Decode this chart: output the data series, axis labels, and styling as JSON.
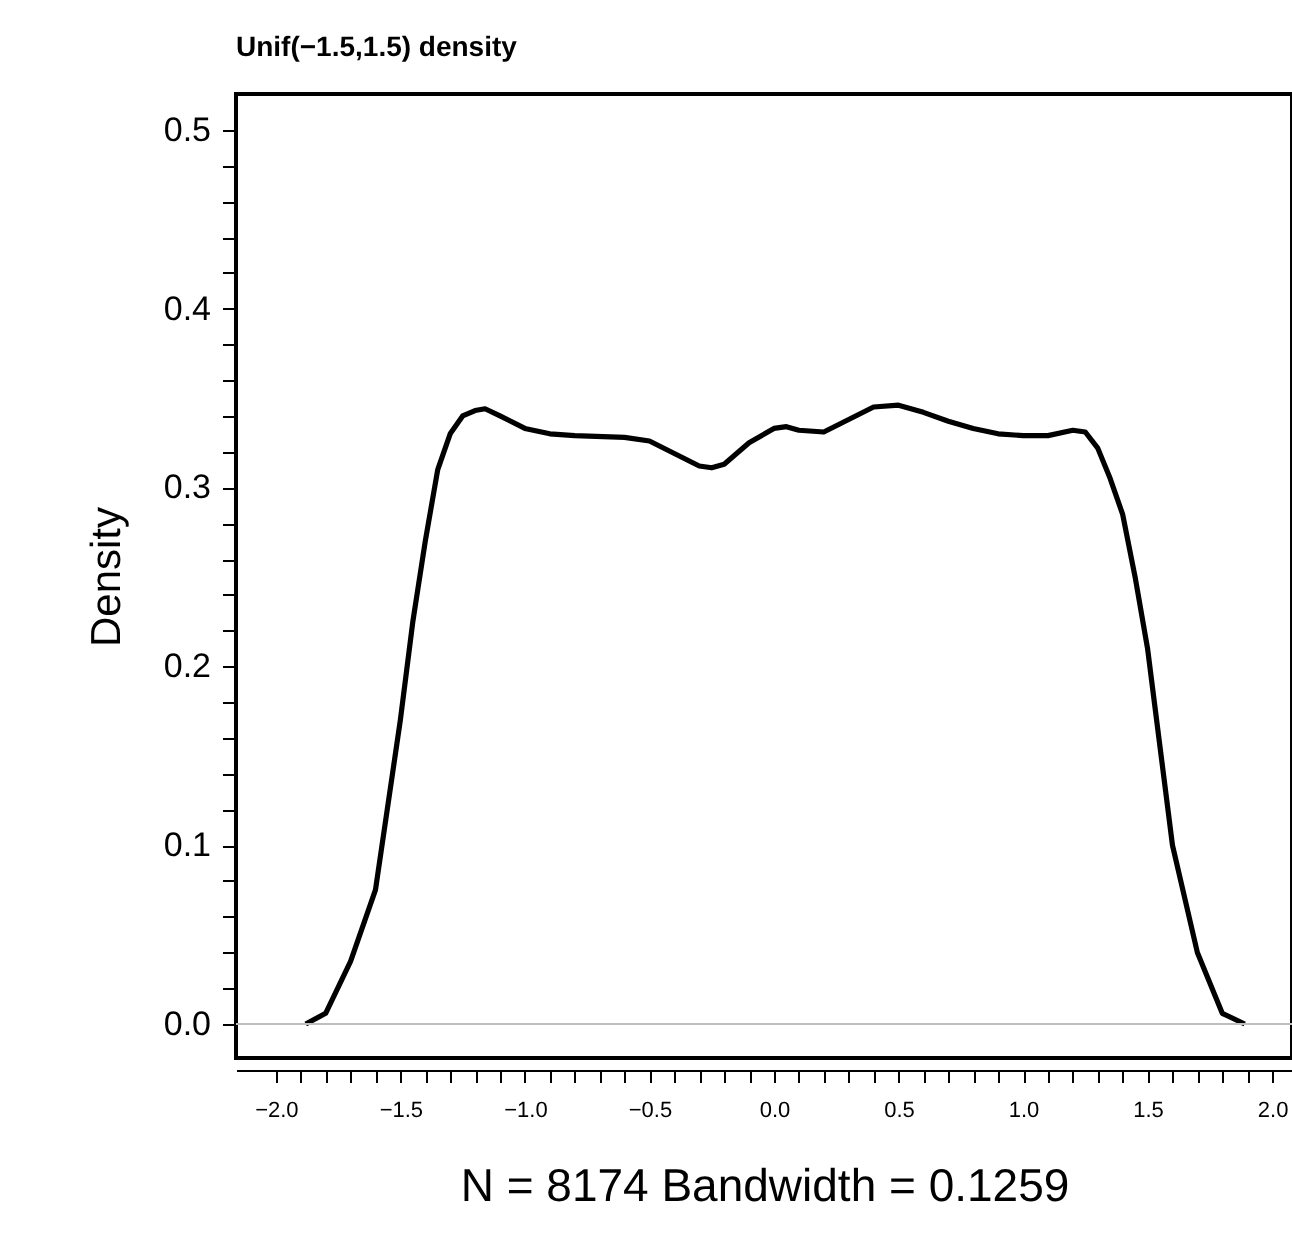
{
  "chart_data": {
    "type": "line",
    "title": "Unif(−1.5,1.5) density",
    "xlabel": "N = 8174 Bandwidth = 0.1259",
    "ylabel": "Density",
    "x": [
      -1.88,
      -1.8,
      -1.7,
      -1.6,
      -1.5,
      -1.45,
      -1.4,
      -1.35,
      -1.3,
      -1.25,
      -1.2,
      -1.16,
      -1.1,
      -1.0,
      -0.9,
      -0.8,
      -0.6,
      -0.5,
      -0.4,
      -0.3,
      -0.25,
      -0.2,
      -0.1,
      0.0,
      0.05,
      0.1,
      0.2,
      0.3,
      0.4,
      0.5,
      0.6,
      0.7,
      0.8,
      0.9,
      1.0,
      1.1,
      1.2,
      1.25,
      1.3,
      1.35,
      1.4,
      1.45,
      1.5,
      1.55,
      1.6,
      1.7,
      1.8,
      1.89
    ],
    "series": [
      {
        "color": "#000000",
        "values": [
          0.0,
          0.006,
          0.035,
          0.075,
          0.17,
          0.225,
          0.27,
          0.31,
          0.33,
          0.34,
          0.343,
          0.344,
          0.34,
          0.333,
          0.33,
          0.329,
          0.328,
          0.326,
          0.319,
          0.312,
          0.311,
          0.313,
          0.325,
          0.333,
          0.334,
          0.332,
          0.331,
          0.338,
          0.345,
          0.346,
          0.342,
          0.337,
          0.333,
          0.33,
          0.329,
          0.329,
          0.332,
          0.331,
          0.322,
          0.305,
          0.285,
          0.25,
          0.21,
          0.155,
          0.1,
          0.04,
          0.006,
          0.0
        ]
      }
    ],
    "xlim": [
      -2.16,
      2.08
    ],
    "ylim": [
      -0.019,
      0.52
    ],
    "xticks": [
      {
        "value": -2.0,
        "label": "−2.0"
      },
      {
        "value": -1.9,
        "label": null
      },
      {
        "value": -1.8,
        "label": null
      },
      {
        "value": -1.7,
        "label": null
      },
      {
        "value": -1.6,
        "label": null
      },
      {
        "value": -1.5,
        "label": "−1.5"
      },
      {
        "value": -1.4,
        "label": null
      },
      {
        "value": -1.3,
        "label": null
      },
      {
        "value": -1.2,
        "label": null
      },
      {
        "value": -1.1,
        "label": null
      },
      {
        "value": -1.0,
        "label": "−1.0"
      },
      {
        "value": -0.9,
        "label": null
      },
      {
        "value": -0.8,
        "label": null
      },
      {
        "value": -0.7,
        "label": null
      },
      {
        "value": -0.6,
        "label": null
      },
      {
        "value": -0.5,
        "label": "−0.5"
      },
      {
        "value": -0.4,
        "label": null
      },
      {
        "value": -0.3,
        "label": null
      },
      {
        "value": -0.2,
        "label": null
      },
      {
        "value": -0.1,
        "label": null
      },
      {
        "value": 0.0,
        "label": "0.0"
      },
      {
        "value": 0.1,
        "label": null
      },
      {
        "value": 0.2,
        "label": null
      },
      {
        "value": 0.3,
        "label": null
      },
      {
        "value": 0.4,
        "label": null
      },
      {
        "value": 0.5,
        "label": "0.5"
      },
      {
        "value": 0.6,
        "label": null
      },
      {
        "value": 0.7,
        "label": null
      },
      {
        "value": 0.8,
        "label": null
      },
      {
        "value": 0.9,
        "label": null
      },
      {
        "value": 1.0,
        "label": "1.0"
      },
      {
        "value": 1.1,
        "label": null
      },
      {
        "value": 1.2,
        "label": null
      },
      {
        "value": 1.3,
        "label": null
      },
      {
        "value": 1.4,
        "label": null
      },
      {
        "value": 1.5,
        "label": "1.5"
      },
      {
        "value": 1.6,
        "label": null
      },
      {
        "value": 1.7,
        "label": null
      },
      {
        "value": 1.8,
        "label": null
      },
      {
        "value": 1.9,
        "label": null
      },
      {
        "value": 2.0,
        "label": "2.0"
      }
    ],
    "yticks": [
      {
        "value": 0.0,
        "label": "0.0"
      },
      {
        "value": 0.02,
        "label": null
      },
      {
        "value": 0.04,
        "label": null
      },
      {
        "value": 0.06,
        "label": null
      },
      {
        "value": 0.08,
        "label": null
      },
      {
        "value": 0.1,
        "label": "0.1"
      },
      {
        "value": 0.12,
        "label": null
      },
      {
        "value": 0.14,
        "label": null
      },
      {
        "value": 0.16,
        "label": null
      },
      {
        "value": 0.18,
        "label": null
      },
      {
        "value": 0.2,
        "label": "0.2"
      },
      {
        "value": 0.22,
        "label": null
      },
      {
        "value": 0.24,
        "label": null
      },
      {
        "value": 0.26,
        "label": null
      },
      {
        "value": 0.28,
        "label": null
      },
      {
        "value": 0.3,
        "label": "0.3"
      },
      {
        "value": 0.32,
        "label": null
      },
      {
        "value": 0.34,
        "label": null
      },
      {
        "value": 0.36,
        "label": null
      },
      {
        "value": 0.38,
        "label": null
      },
      {
        "value": 0.4,
        "label": "0.4"
      },
      {
        "value": 0.42,
        "label": null
      },
      {
        "value": 0.44,
        "label": null
      },
      {
        "value": 0.46,
        "label": null
      },
      {
        "value": 0.48,
        "label": null
      },
      {
        "value": 0.5,
        "label": "0.5"
      }
    ],
    "ref_lines": [
      {
        "axis": "y",
        "value": 0,
        "color": "#bebebe"
      }
    ],
    "grid": false,
    "marker": "none",
    "line_style": "solid"
  }
}
